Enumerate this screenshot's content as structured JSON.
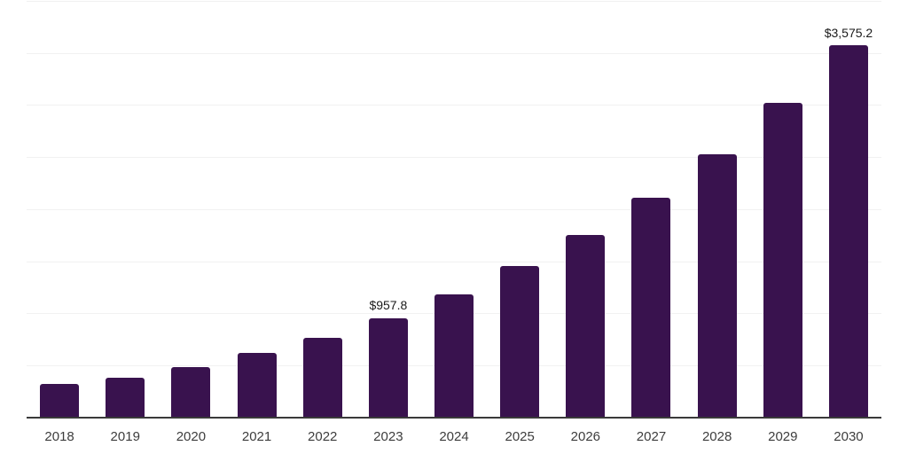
{
  "chart_data": {
    "type": "bar",
    "title": "",
    "xlabel": "",
    "ylabel": "",
    "categories": [
      "2018",
      "2019",
      "2020",
      "2021",
      "2022",
      "2023",
      "2024",
      "2025",
      "2026",
      "2027",
      "2028",
      "2029",
      "2030"
    ],
    "values": [
      320,
      385,
      487,
      618,
      767,
      957.8,
      1180,
      1460,
      1752,
      2107,
      2524,
      3022,
      3575.2
    ],
    "data_labels": [
      "",
      "",
      "",
      "",
      "",
      "$957.8",
      "",
      "",
      "",
      "",
      "",
      "",
      "$3,575.2"
    ],
    "ylim": [
      0,
      4000
    ],
    "gridline_interval": 500,
    "grid": true,
    "legend_position": "none",
    "colors": {
      "bar": "#39124E",
      "gridline": "#f1f1f1",
      "axis_line": "#3a3a3a",
      "tick_label": "#3d3d3d",
      "data_label": "#1a1a1a",
      "background": "#ffffff"
    }
  }
}
